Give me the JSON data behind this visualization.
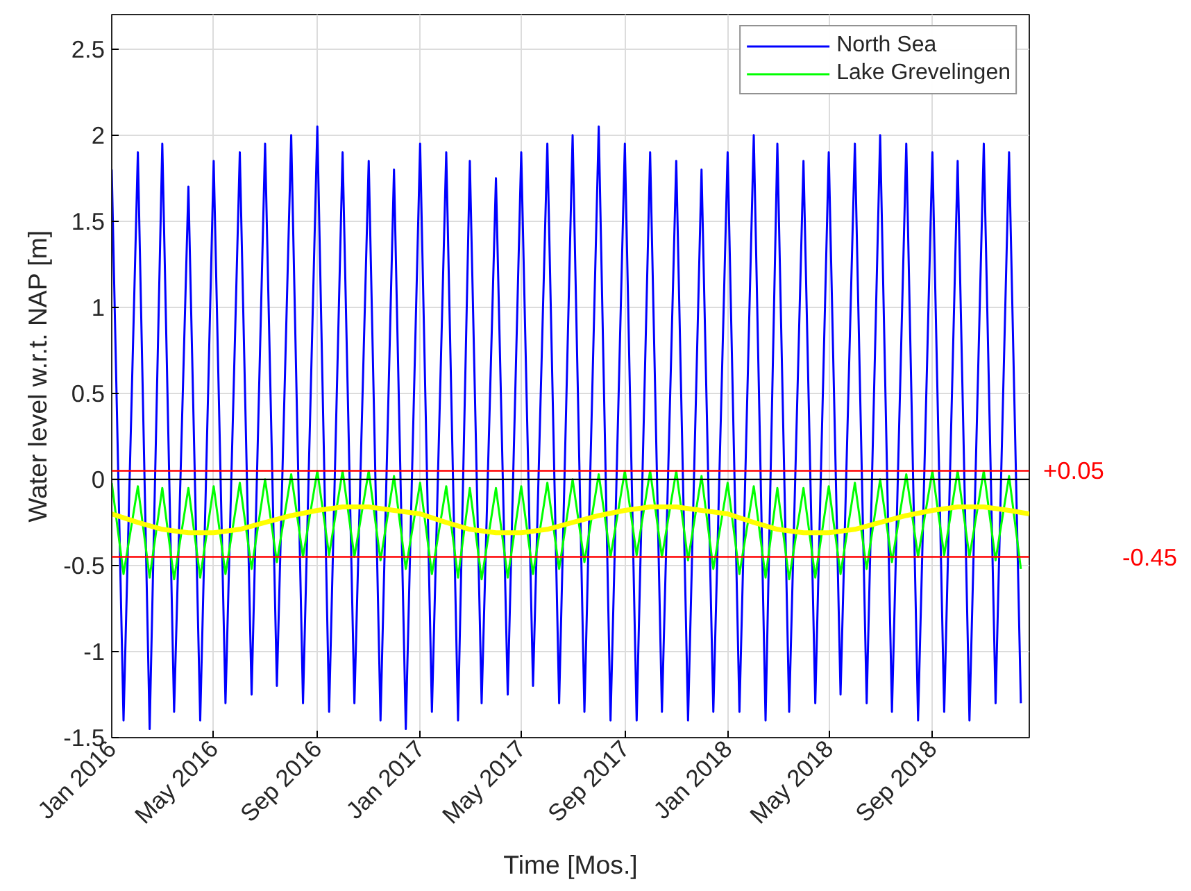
{
  "chart_data": {
    "type": "line",
    "xlabel": "Time [Mos.]",
    "ylabel": "Water level w.r.t. NAP [m]",
    "x": [
      "2016-01-01",
      "2016-01-15",
      "2016-02-01",
      "2016-02-15",
      "2016-03-01",
      "2016-03-15",
      "2016-04-01",
      "2016-04-15",
      "2016-05-01",
      "2016-05-15",
      "2016-06-01",
      "2016-06-15",
      "2016-07-01",
      "2016-07-15",
      "2016-08-01",
      "2016-08-15",
      "2016-09-01",
      "2016-09-15",
      "2016-10-01",
      "2016-10-15",
      "2016-11-01",
      "2016-11-15",
      "2016-12-01",
      "2016-12-15",
      "2017-01-01",
      "2017-01-15",
      "2017-02-01",
      "2017-02-15",
      "2017-03-01",
      "2017-03-15",
      "2017-04-01",
      "2017-04-15",
      "2017-05-01",
      "2017-05-15",
      "2017-06-01",
      "2017-06-15",
      "2017-07-01",
      "2017-07-15",
      "2017-08-01",
      "2017-08-15",
      "2017-09-01",
      "2017-09-15",
      "2017-10-01",
      "2017-10-15",
      "2017-11-01",
      "2017-11-15",
      "2017-12-01",
      "2017-12-15",
      "2018-01-01",
      "2018-01-15",
      "2018-02-01",
      "2018-02-15",
      "2018-03-01",
      "2018-03-15",
      "2018-04-01",
      "2018-04-15",
      "2018-05-01",
      "2018-05-15",
      "2018-06-01",
      "2018-06-15",
      "2018-07-01",
      "2018-07-15",
      "2018-08-01",
      "2018-08-15",
      "2018-09-01",
      "2018-09-15",
      "2018-10-01",
      "2018-10-15",
      "2018-11-01",
      "2018-11-15",
      "2018-12-01",
      "2018-12-15"
    ],
    "series": [
      {
        "name": "North Sea",
        "color": "#0000ff",
        "values": [
          1.8,
          -1.4,
          1.9,
          -1.45,
          1.95,
          -1.35,
          1.7,
          -1.4,
          1.85,
          -1.3,
          1.9,
          -1.25,
          1.95,
          -1.2,
          2.0,
          -1.3,
          2.05,
          -1.35,
          1.9,
          -1.3,
          1.85,
          -1.4,
          1.8,
          -1.45,
          1.95,
          -1.35,
          1.9,
          -1.4,
          1.85,
          -1.3,
          1.75,
          -1.25,
          1.9,
          -1.2,
          1.95,
          -1.3,
          2.0,
          -1.35,
          2.05,
          -1.4,
          1.95,
          -1.4,
          1.9,
          -1.35,
          1.85,
          -1.4,
          1.8,
          -1.35,
          1.9,
          -1.35,
          2.0,
          -1.4,
          1.95,
          -1.35,
          1.85,
          -1.3,
          1.9,
          -1.25,
          1.95,
          -1.3,
          2.0,
          -1.35,
          1.95,
          -1.4,
          1.9,
          -1.35,
          1.85,
          -1.4,
          1.95,
          -1.3,
          1.9,
          -1.3
        ]
      },
      {
        "name": "Lake Grevelingen",
        "color": "#00ff00",
        "values": [
          -0.02,
          -0.55,
          -0.04,
          -0.57,
          -0.05,
          -0.58,
          -0.05,
          -0.57,
          -0.04,
          -0.55,
          -0.02,
          -0.52,
          0.0,
          -0.48,
          0.03,
          -0.45,
          0.05,
          -0.44,
          0.05,
          -0.45,
          0.05,
          -0.47,
          0.02,
          -0.52,
          -0.02,
          -0.55,
          -0.04,
          -0.57,
          -0.05,
          -0.58,
          -0.05,
          -0.57,
          -0.04,
          -0.55,
          -0.02,
          -0.52,
          0.0,
          -0.48,
          0.03,
          -0.45,
          0.05,
          -0.44,
          0.05,
          -0.45,
          0.05,
          -0.47,
          0.02,
          -0.52,
          -0.02,
          -0.55,
          -0.04,
          -0.57,
          -0.05,
          -0.58,
          -0.05,
          -0.57,
          -0.04,
          -0.55,
          -0.02,
          -0.52,
          0.0,
          -0.48,
          0.03,
          -0.45,
          0.05,
          -0.44,
          0.05,
          -0.45,
          0.05,
          -0.47,
          0.02,
          -0.52
        ]
      },
      {
        "color": "#ffff00",
        "x": [
          "2016-01-01",
          "2016-02-01",
          "2016-03-01",
          "2016-04-01",
          "2016-05-01",
          "2016-06-01",
          "2016-07-01",
          "2016-08-01",
          "2016-09-01",
          "2016-10-01",
          "2016-11-01",
          "2016-12-01",
          "2017-01-01",
          "2017-02-01",
          "2017-03-01",
          "2017-04-01",
          "2017-05-01",
          "2017-06-01",
          "2017-07-01",
          "2017-08-01",
          "2017-09-01",
          "2017-10-01",
          "2017-11-01",
          "2017-12-01",
          "2018-01-01",
          "2018-02-01",
          "2018-03-01",
          "2018-04-01",
          "2018-05-01",
          "2018-06-01",
          "2018-07-01",
          "2018-08-01",
          "2018-09-01",
          "2018-10-01",
          "2018-11-01",
          "2018-12-01",
          "2018-12-25"
        ],
        "values": [
          -0.2,
          -0.25,
          -0.29,
          -0.31,
          -0.31,
          -0.29,
          -0.25,
          -0.21,
          -0.18,
          -0.16,
          -0.16,
          -0.18,
          -0.2,
          -0.25,
          -0.29,
          -0.31,
          -0.31,
          -0.29,
          -0.25,
          -0.21,
          -0.18,
          -0.16,
          -0.16,
          -0.18,
          -0.2,
          -0.25,
          -0.29,
          -0.31,
          -0.31,
          -0.29,
          -0.25,
          -0.21,
          -0.18,
          -0.16,
          -0.16,
          -0.18,
          -0.2
        ]
      }
    ],
    "xlim": [
      "2016-01-01",
      "2018-12-25"
    ],
    "xticks": [
      {
        "value": "2016-01-01",
        "label": "Jan 2016"
      },
      {
        "value": "2016-05-01",
        "label": "May 2016"
      },
      {
        "value": "2016-09-01",
        "label": "Sep 2016"
      },
      {
        "value": "2017-01-01",
        "label": "Jan 2017"
      },
      {
        "value": "2017-05-01",
        "label": "May 2017"
      },
      {
        "value": "2017-09-01",
        "label": "Sep 2017"
      },
      {
        "value": "2018-01-01",
        "label": "Jan 2018"
      },
      {
        "value": "2018-05-01",
        "label": "May 2018"
      },
      {
        "value": "2018-09-01",
        "label": "Sep 2018"
      }
    ],
    "ylim": [
      -1.5,
      2.7
    ],
    "yticks": [
      -1.5,
      {
        "value": -1,
        "label": "-1"
      },
      -0.5,
      {
        "value": 0,
        "label": "0"
      },
      0.5,
      {
        "value": 1,
        "label": "1"
      },
      1.5,
      {
        "value": 2,
        "label": "2"
      },
      2.5
    ],
    "ref_lines": [
      {
        "axis": "y",
        "value": 0,
        "label": null,
        "color": "#000000"
      },
      {
        "axis": "y",
        "value": 0.05,
        "label": "+0.05",
        "color": "#ff0000"
      },
      {
        "axis": "y",
        "value": -0.45,
        "label": "-0.45",
        "color": "#ff0000"
      }
    ],
    "grid": true,
    "legend": "top right",
    "line_style": "solid",
    "marker": "none"
  }
}
